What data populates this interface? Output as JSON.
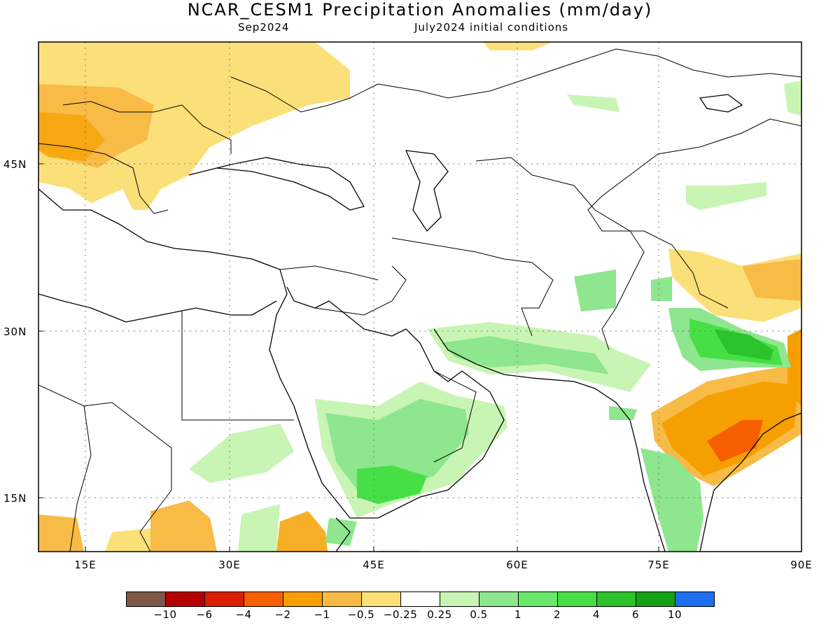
{
  "title": "NCAR_CESM1 Precipitation Anomalies (mm/day)",
  "subtitle_left": "Sep2024",
  "subtitle_right": "July2024 initial conditions",
  "map": {
    "lon_range": [
      10,
      90
    ],
    "lat_range": [
      10,
      55
    ],
    "lat_labels": [
      "45N",
      "30N",
      "15N"
    ],
    "lon_labels": [
      "15E",
      "30E",
      "45E",
      "60E",
      "75E",
      "90E"
    ]
  },
  "colorbar": {
    "colors": [
      "#7d5846",
      "#b50000",
      "#dc1e00",
      "#f55f00",
      "#f5a000",
      "#f7bb46",
      "#fbe07a",
      "#ffffff",
      "#c8f5b4",
      "#8ee68e",
      "#6ae86a",
      "#46e046",
      "#2cc22c",
      "#16a016",
      "#1e6ef0"
    ],
    "labels": [
      "−10",
      "−6",
      "−4",
      "−2",
      "−1",
      "−0.5",
      "−0.25",
      "0.25",
      "0.5",
      "1",
      "2",
      "4",
      "6",
      "10"
    ]
  }
}
